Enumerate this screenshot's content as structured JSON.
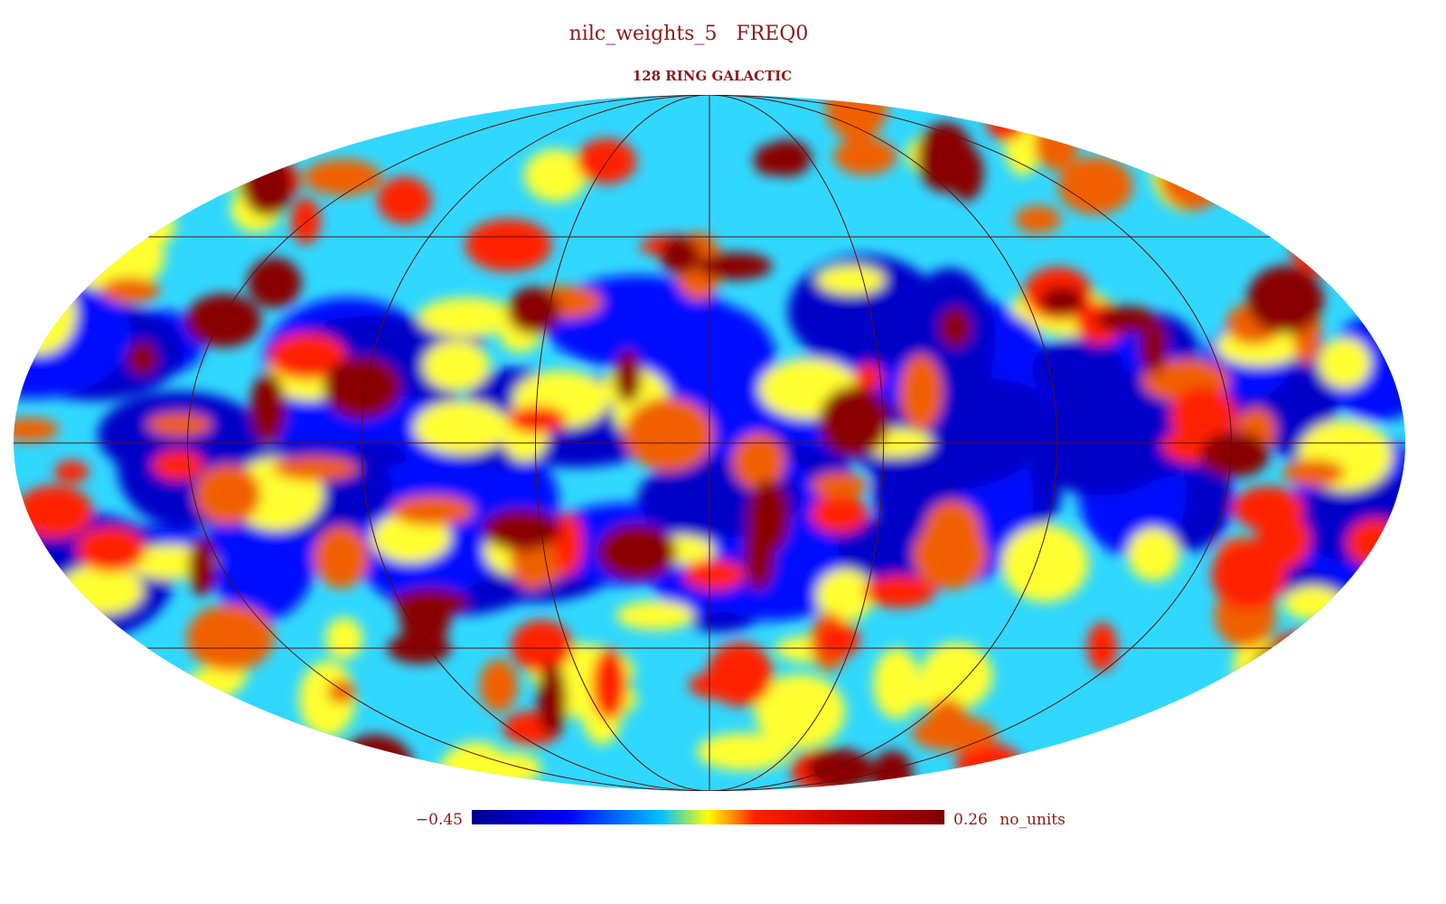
{
  "header": {
    "title": "nilc_weights_5   FREQ0",
    "subtitle": "128 RING GALACTIC"
  },
  "colorbar": {
    "min": {
      "value": -0.45,
      "label": "−0.45"
    },
    "max": 0.26,
    "unit": "no_units"
  }
}
